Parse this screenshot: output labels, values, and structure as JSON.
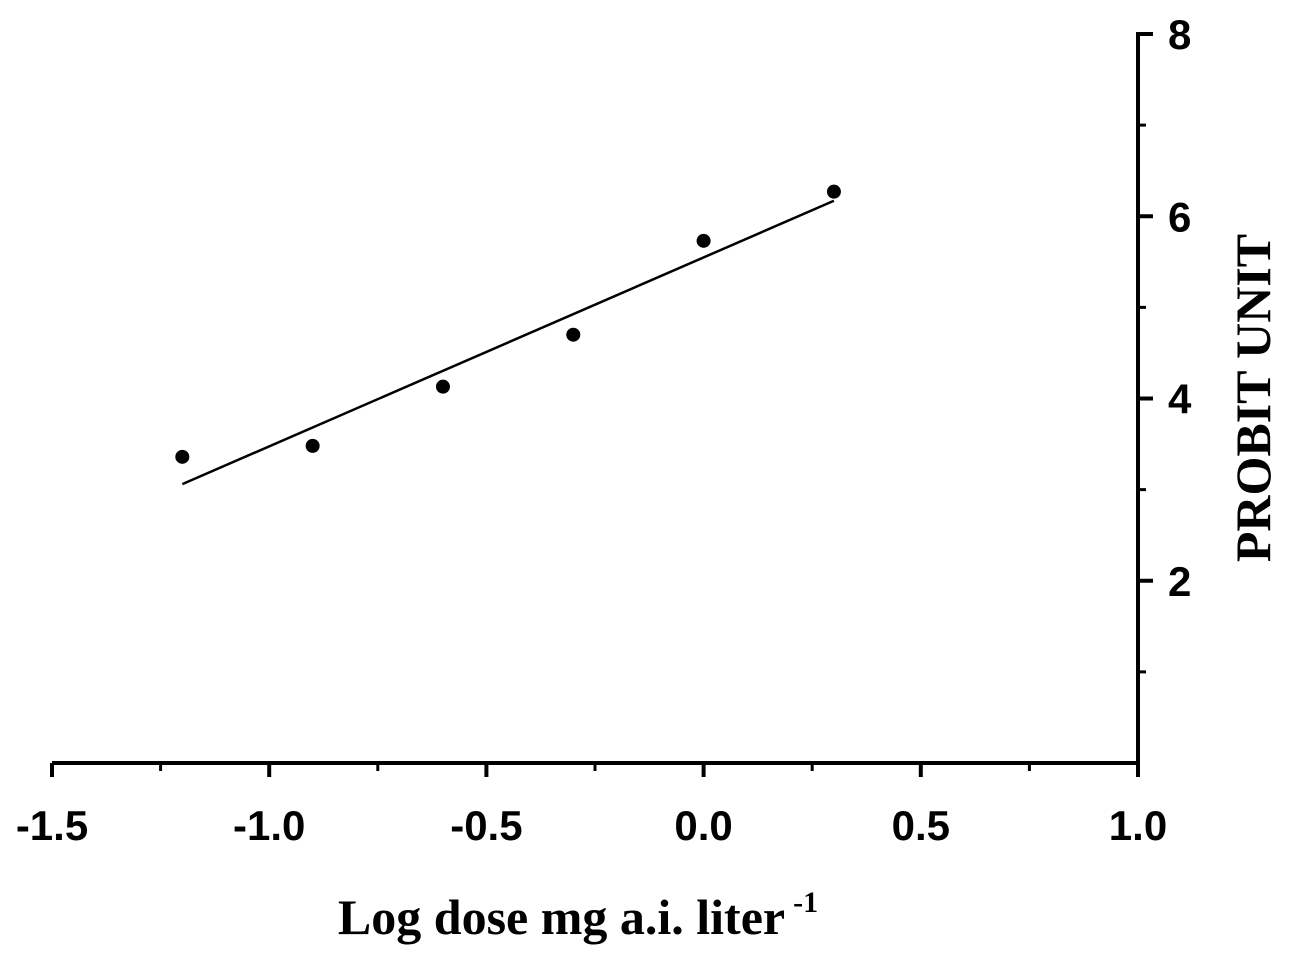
{
  "chart_data": {
    "type": "scatter",
    "xlabel": "Log dose mg a.i. liter",
    "xlabel_superscript": "-1",
    "ylabel": "PROBIT UNIT",
    "xlim": [
      -1.5,
      1.0
    ],
    "ylim": [
      0,
      8
    ],
    "x_ticks": [
      -1.5,
      -1.0,
      -0.5,
      0.0,
      0.5,
      1.0
    ],
    "x_tick_labels": [
      "-1.5",
      "-1.0",
      "-0.5",
      "0.0",
      "0.5",
      "1.0"
    ],
    "y_ticks": [
      2,
      4,
      6,
      8
    ],
    "y_tick_labels": [
      "2",
      "4",
      "6",
      "8"
    ],
    "y_axis_side": "right",
    "grid": false,
    "series": [
      {
        "points": [
          {
            "x": -1.2,
            "y": 3.36
          },
          {
            "x": -0.9,
            "y": 3.48
          },
          {
            "x": -0.6,
            "y": 4.13
          },
          {
            "x": -0.3,
            "y": 4.7
          },
          {
            "x": 0.0,
            "y": 5.73
          },
          {
            "x": 0.3,
            "y": 6.27
          }
        ]
      }
    ],
    "fit_line": {
      "x": [
        -1.2,
        0.3
      ],
      "y": [
        3.06,
        6.17
      ]
    }
  }
}
